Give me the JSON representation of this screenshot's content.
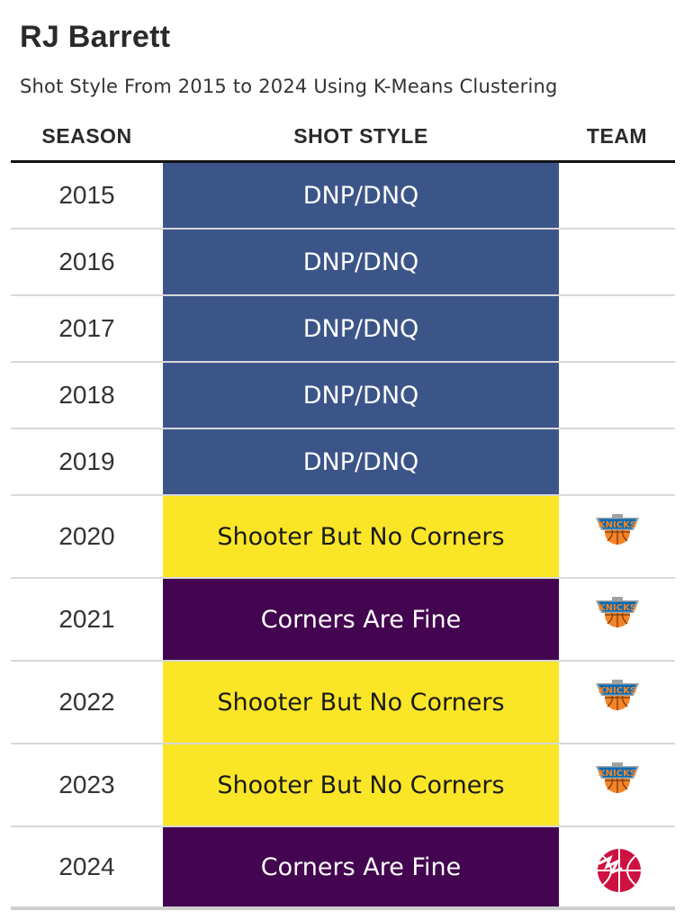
{
  "header": {
    "title": "RJ Barrett",
    "subtitle": "Shot Style From 2015 to 2024 Using K-Means Clustering"
  },
  "columns": {
    "season": "SEASON",
    "shot_style": "SHOT STYLE",
    "team": "TEAM"
  },
  "styles": {
    "DNP/DNQ": {
      "bg": "#3c5589",
      "fg": "#ffffff"
    },
    "Shooter But No Corners": {
      "bg": "#fae627",
      "fg": "#1a1a1a"
    },
    "Corners Are Fine": {
      "bg": "#43054f",
      "fg": "#ffffff"
    }
  },
  "team_logos": {
    "knicks": "knicks-logo-icon",
    "raptors": "raptors-logo-icon"
  },
  "rows": [
    {
      "season": "2015",
      "shot_style": "DNP/DNQ",
      "team": ""
    },
    {
      "season": "2016",
      "shot_style": "DNP/DNQ",
      "team": ""
    },
    {
      "season": "2017",
      "shot_style": "DNP/DNQ",
      "team": ""
    },
    {
      "season": "2018",
      "shot_style": "DNP/DNQ",
      "team": ""
    },
    {
      "season": "2019",
      "shot_style": "DNP/DNQ",
      "team": ""
    },
    {
      "season": "2020",
      "shot_style": "Shooter But No Corners",
      "team": "knicks"
    },
    {
      "season": "2021",
      "shot_style": "Corners Are Fine",
      "team": "knicks"
    },
    {
      "season": "2022",
      "shot_style": "Shooter But No Corners",
      "team": "knicks"
    },
    {
      "season": "2023",
      "shot_style": "Shooter But No Corners",
      "team": "knicks"
    },
    {
      "season": "2024",
      "shot_style": "Corners Are Fine",
      "team": "raptors"
    }
  ]
}
